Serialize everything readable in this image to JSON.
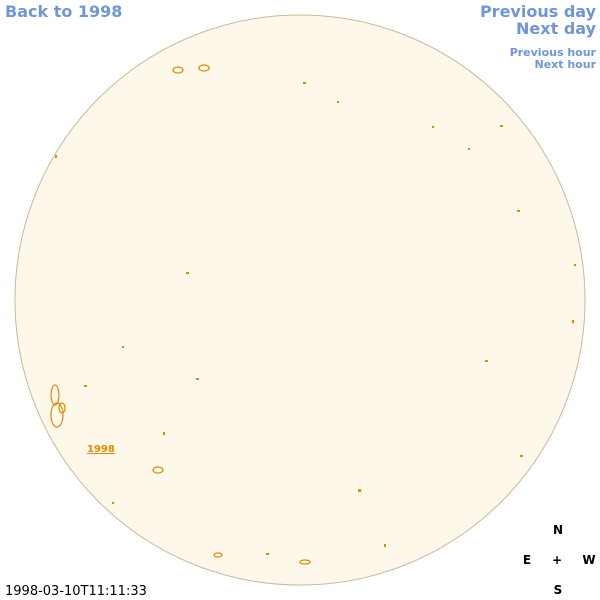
{
  "nav": {
    "back": "Back to 1998",
    "previous_day": "Previous day",
    "next_day": "Next day",
    "previous_hour": "Previous hour",
    "next_hour": "Next hour"
  },
  "region_label": "1998",
  "compass": {
    "north": "N",
    "east": "E",
    "center": "+",
    "west": "W",
    "south": "S"
  },
  "timestamp": "1998-03-10T11:11:33"
}
